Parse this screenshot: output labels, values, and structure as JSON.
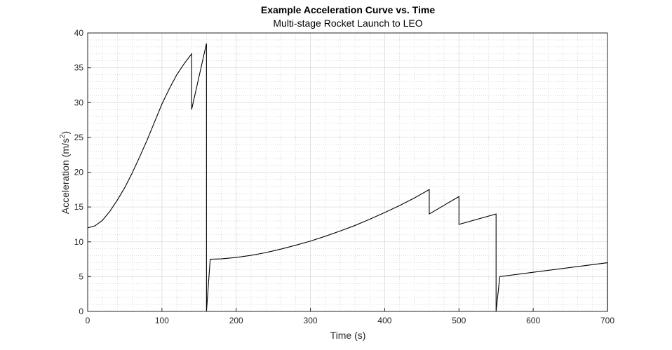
{
  "chart_data": {
    "type": "line",
    "title": "Example Acceleration Curve vs. Time",
    "subtitle": "Multi-stage Rocket Launch to LEO",
    "xlabel": "Time (s)",
    "ylabel_main": "Acceleration (m/s",
    "ylabel_sup": "2",
    "ylabel_close": ")",
    "xlim": [
      0,
      700
    ],
    "ylim": [
      0,
      40
    ],
    "xticks": [
      0,
      100,
      200,
      300,
      400,
      500,
      600,
      700
    ],
    "yticks": [
      0,
      5,
      10,
      15,
      20,
      25,
      30,
      35,
      40
    ],
    "xtick_labels": [
      "0",
      "100",
      "200",
      "300",
      "400",
      "500",
      "600",
      "700"
    ],
    "ytick_labels": [
      "0",
      "5",
      "10",
      "15",
      "20",
      "25",
      "30",
      "35",
      "40"
    ],
    "grid": true,
    "minor_grid": true,
    "line_color": "#000000",
    "series": [
      {
        "x": [
          0,
          10,
          20,
          30,
          40,
          50,
          60,
          70,
          80,
          90,
          100,
          110,
          120,
          130,
          140,
          140,
          160,
          160,
          165,
          180,
          200,
          220,
          240,
          260,
          280,
          300,
          320,
          340,
          360,
          380,
          400,
          420,
          440,
          460,
          460,
          500,
          500,
          550,
          550,
          555,
          700,
          700
        ],
        "y": [
          12,
          12.3,
          13.1,
          14.4,
          16.0,
          17.8,
          19.9,
          22.2,
          24.6,
          27.2,
          29.8,
          32.0,
          34.0,
          35.6,
          37.0,
          29.0,
          38.5,
          0,
          7.5,
          7.55,
          7.75,
          8.05,
          8.45,
          8.95,
          9.5,
          10.1,
          10.8,
          11.55,
          12.35,
          13.25,
          14.2,
          15.2,
          16.3,
          17.5,
          14.0,
          16.5,
          12.5,
          14.0,
          0,
          5.0,
          7.0,
          0
        ]
      }
    ]
  }
}
